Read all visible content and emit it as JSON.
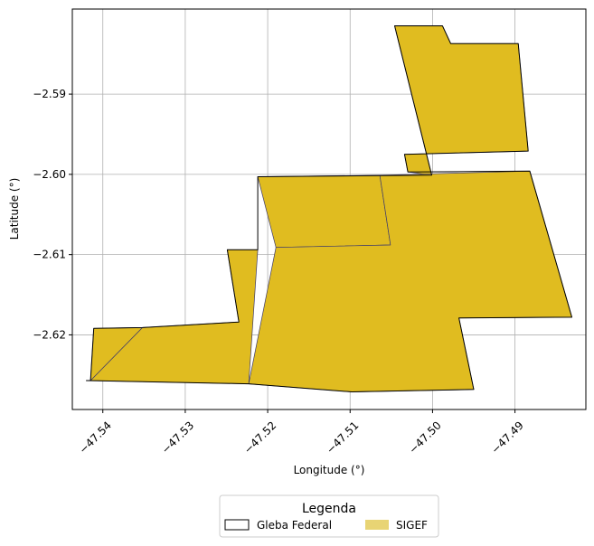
{
  "chart_data": {
    "type": "map",
    "xlabel": "Longitude (°)",
    "ylabel": "Latitude (°)",
    "xlim": [
      -47.5437,
      -47.4814
    ],
    "ylim": [
      -2.6293,
      -2.5794
    ],
    "xticks": [
      {
        "value": -47.54,
        "label": "−47.54"
      },
      {
        "value": -47.53,
        "label": "−47.53"
      },
      {
        "value": -47.52,
        "label": "−47.52"
      },
      {
        "value": -47.51,
        "label": "−47.51"
      },
      {
        "value": -47.5,
        "label": "−47.50"
      },
      {
        "value": -47.49,
        "label": "−47.49"
      }
    ],
    "yticks": [
      {
        "value": -2.59,
        "label": "−2.59"
      },
      {
        "value": -2.6,
        "label": "−2.60"
      },
      {
        "value": -2.61,
        "label": "−2.61"
      },
      {
        "value": -2.62,
        "label": "−2.62"
      }
    ],
    "grid": true,
    "colors": {
      "sigef_fill": "#e0bc20",
      "sigef_edge": "#3d3a6b",
      "gleba_edge": "#000000"
    },
    "gleba_federal": [
      [
        -47.5046,
        -2.5815
      ],
      [
        -47.4988,
        -2.5815
      ],
      [
        -47.4978,
        -2.5837
      ],
      [
        -47.4896,
        -2.5837
      ],
      [
        -47.4884,
        -2.5971
      ],
      [
        -47.5034,
        -2.5975
      ],
      [
        -47.503,
        -2.5997
      ],
      [
        -47.4882,
        -2.5996
      ],
      [
        -47.4831,
        -2.6178
      ],
      [
        -47.4968,
        -2.6179
      ],
      [
        -47.495,
        -2.6268
      ],
      [
        -47.5098,
        -2.6271
      ],
      [
        -47.5223,
        -2.6261
      ],
      [
        -47.542,
        -2.6257
      ],
      [
        -47.5415,
        -2.6257
      ],
      [
        -47.5411,
        -2.6192
      ],
      [
        -47.5352,
        -2.6191
      ],
      [
        -47.5235,
        -2.6184
      ],
      [
        -47.5249,
        -2.6094
      ],
      [
        -47.5212,
        -2.6094
      ],
      [
        -47.5212,
        -2.6003
      ],
      [
        -47.5001,
        -2.6001
      ],
      [
        -47.5046,
        -2.5815
      ]
    ],
    "sigef_parcels": [
      [
        [
          -47.5046,
          -2.5815
        ],
        [
          -47.4988,
          -2.5815
        ],
        [
          -47.4978,
          -2.5837
        ],
        [
          -47.4896,
          -2.5837
        ],
        [
          -47.4884,
          -2.5971
        ],
        [
          -47.5034,
          -2.5975
        ],
        [
          -47.503,
          -2.5997
        ],
        [
          -47.5001,
          -2.6001
        ],
        [
          -47.5046,
          -2.5815
        ]
      ],
      [
        [
          -47.5212,
          -2.6003
        ],
        [
          -47.5064,
          -2.6001
        ],
        [
          -47.5051,
          -2.6088
        ],
        [
          -47.519,
          -2.6091
        ],
        [
          -47.5212,
          -2.6003
        ]
      ],
      [
        [
          -47.5064,
          -2.6001
        ],
        [
          -47.4882,
          -2.5996
        ],
        [
          -47.4831,
          -2.6178
        ],
        [
          -47.4968,
          -2.6179
        ],
        [
          -47.495,
          -2.6268
        ],
        [
          -47.5098,
          -2.6271
        ],
        [
          -47.5223,
          -2.6261
        ],
        [
          -47.519,
          -2.6091
        ],
        [
          -47.5051,
          -2.6088
        ],
        [
          -47.5064,
          -2.6001
        ]
      ],
      [
        [
          -47.5212,
          -2.6094
        ],
        [
          -47.5249,
          -2.6094
        ],
        [
          -47.5235,
          -2.6184
        ],
        [
          -47.5352,
          -2.6191
        ],
        [
          -47.5415,
          -2.6257
        ],
        [
          -47.5223,
          -2.6261
        ],
        [
          -47.5212,
          -2.6094
        ]
      ],
      [
        [
          -47.5411,
          -2.6192
        ],
        [
          -47.5352,
          -2.6191
        ],
        [
          -47.5415,
          -2.6257
        ],
        [
          -47.5411,
          -2.6192
        ]
      ]
    ],
    "legend": {
      "title": "Legenda",
      "placement": "bottom-center",
      "entries": [
        {
          "key": "gleba",
          "label": "Gleba Federal"
        },
        {
          "key": "sigef",
          "label": "SIGEF"
        }
      ]
    }
  }
}
